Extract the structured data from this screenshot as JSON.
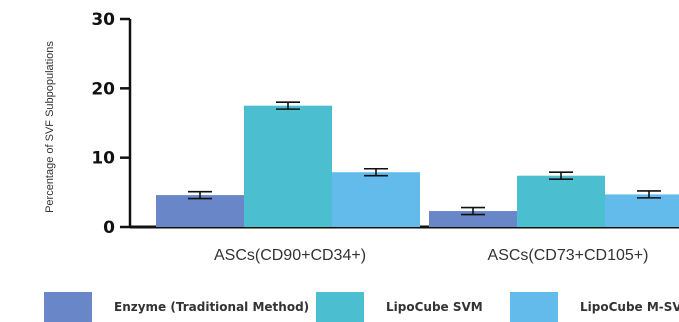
{
  "chart_data": {
    "type": "bar",
    "ylabel": "Percentage of SVF Subpopulations",
    "ylim": [
      0,
      30
    ],
    "yticks": [
      "0",
      "10",
      "20",
      "30"
    ],
    "categories": [
      "ASCs(CD90+CD34+)",
      "ASCs(CD73+CD105+)"
    ],
    "series": [
      {
        "name": "Enzyme (Traditional Method)",
        "color": "#6886c8",
        "values": [
          4.6,
          2.3
        ],
        "errors": [
          0.5,
          0.5
        ]
      },
      {
        "name": "LipoCube SVM",
        "color": "#4bbfd0",
        "values": [
          17.5,
          7.4
        ],
        "errors": [
          0.5,
          0.5
        ]
      },
      {
        "name": "LipoCube M-SVF",
        "color": "#63bbeb",
        "values": [
          7.9,
          4.7
        ],
        "errors": [
          0.5,
          0.5
        ]
      }
    ],
    "grid": false,
    "legend_position": "bottom"
  }
}
